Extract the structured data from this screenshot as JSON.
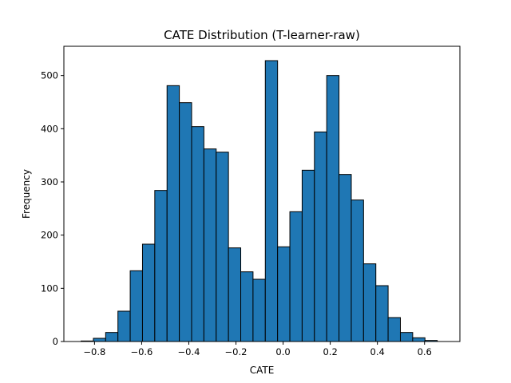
{
  "chart_data": {
    "type": "histogram",
    "title": "CATE Distribution (T-learner-raw)",
    "xlabel": "CATE",
    "ylabel": "Frequency",
    "xlim": [
      -0.93,
      0.75
    ],
    "ylim": [
      0,
      555
    ],
    "xticks": [
      -0.8,
      -0.6,
      -0.4,
      -0.2,
      0.0,
      0.2,
      0.4,
      0.6
    ],
    "xtick_labels": [
      "−0.8",
      "−0.6",
      "−0.4",
      "−0.2",
      "0.0",
      "0.2",
      "0.4",
      "0.6"
    ],
    "yticks": [
      0,
      100,
      200,
      300,
      400,
      500
    ],
    "ytick_labels": [
      "0",
      "100",
      "200",
      "300",
      "400",
      "500"
    ],
    "bin_start": -0.857,
    "bin_width": 0.0521,
    "counts": [
      1,
      6,
      17,
      57,
      133,
      183,
      284,
      481,
      449,
      404,
      362,
      356,
      176,
      131,
      117,
      528,
      178,
      244,
      322,
      394,
      500,
      314,
      266,
      146,
      105,
      45,
      17,
      7,
      2
    ],
    "bar_color": "#1f77b4",
    "edge_color": "#000000",
    "grid": false,
    "legend": false
  }
}
